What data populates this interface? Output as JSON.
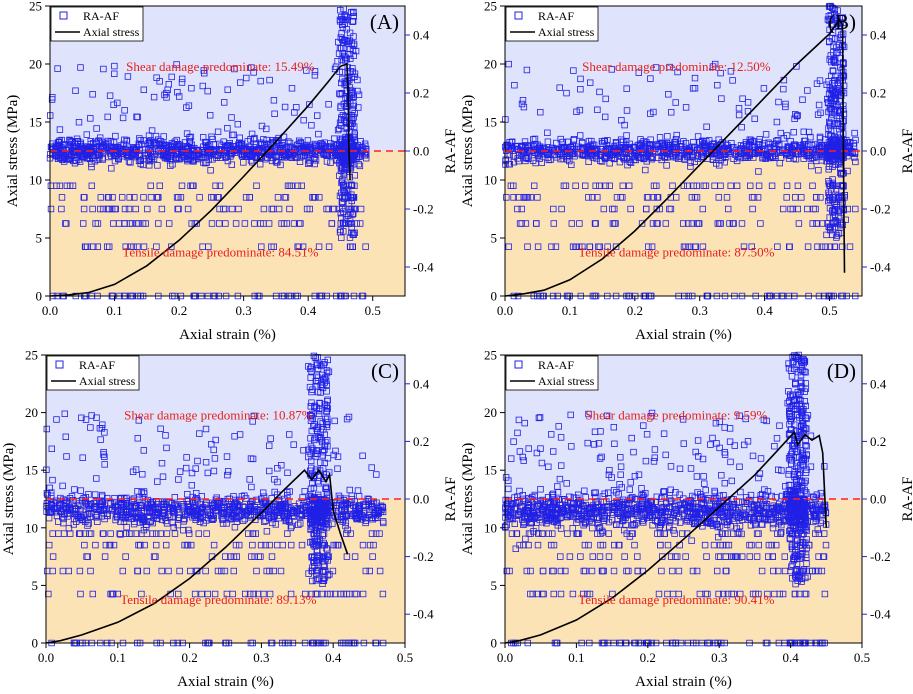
{
  "colors": {
    "shear_region": "#dfe3fb",
    "tensile_region": "#fbe3b5",
    "points": "#2020e6",
    "stress_line": "#000000",
    "threshold": "#ff2020",
    "annotation": "#e8201e",
    "right_axis": "#2020e6"
  },
  "chart_data": [
    {
      "type": "scatter",
      "panel_label": "(A)",
      "xlabel": "Axial strain (%)",
      "ylabel_left": "Axial stress (MPa)",
      "ylabel_right": "RA-AF",
      "xlim": [
        0,
        0.55
      ],
      "x_ticks": [
        "0.0",
        "0.1",
        "0.2",
        "0.3",
        "0.4",
        "0.5"
      ],
      "ylim_left": [
        0,
        25
      ],
      "ylim_right": [
        -0.5,
        0.5
      ],
      "left_ticks": [
        "0",
        "5",
        "10",
        "15",
        "20",
        "25"
      ],
      "right_ticks": [
        "-0.4",
        "-0.2",
        "0.0",
        "0.2",
        "0.4"
      ],
      "threshold": 0.0,
      "legend": [
        "RA-AF",
        "Axial stress"
      ],
      "shear_text": "Shear damage predominate: 15.49%",
      "tensile_text": "Tensile damage predominate: 84.51%",
      "failure_strain": 0.46,
      "stress_curve": {
        "x": [
          0,
          0.03,
          0.06,
          0.1,
          0.15,
          0.2,
          0.25,
          0.3,
          0.35,
          0.4,
          0.43,
          0.45,
          0.46,
          0.462,
          0.463,
          0.465
        ],
        "y": [
          0,
          0.1,
          0.3,
          1.0,
          2.6,
          4.8,
          7.4,
          10.3,
          13.3,
          16.4,
          18.4,
          19.8,
          20.0,
          17.5,
          13.0,
          10.0
        ]
      },
      "series": [
        {
          "name": "RA-AF",
          "n_points": 1500,
          "x_range": [
            0,
            0.49
          ],
          "band_center": 0.0,
          "band_sd": 0.02
        }
      ]
    },
    {
      "type": "scatter",
      "panel_label": "(B)",
      "xlabel": "Axial strain (%)",
      "ylabel_left": "Axial stress (MPa)",
      "ylabel_right": "RA-AF",
      "xlim": [
        0,
        0.55
      ],
      "x_ticks": [
        "0.0",
        "0.1",
        "0.2",
        "0.3",
        "0.4",
        "0.5"
      ],
      "ylim_left": [
        0,
        25
      ],
      "ylim_right": [
        -0.5,
        0.5
      ],
      "left_ticks": [
        "0",
        "5",
        "10",
        "15",
        "20",
        "25"
      ],
      "right_ticks": [
        "-0.4",
        "-0.2",
        "0.0",
        "0.2",
        "0.4"
      ],
      "threshold": 0.0,
      "legend": [
        "RA-AF",
        "Axial stress"
      ],
      "shear_text": "Shear damage predominate: 12.50%",
      "tensile_text": "Tensile damage predominate: 87.50%",
      "failure_strain": 0.51,
      "stress_curve": {
        "x": [
          0,
          0.03,
          0.06,
          0.1,
          0.15,
          0.2,
          0.25,
          0.3,
          0.35,
          0.4,
          0.45,
          0.5,
          0.515,
          0.52,
          0.522,
          0.523
        ],
        "y": [
          0,
          0.2,
          0.5,
          1.4,
          3.2,
          5.6,
          8.4,
          11.3,
          14.2,
          17.1,
          20.0,
          22.6,
          23.8,
          23.4,
          8.0,
          2.0
        ]
      },
      "series": [
        {
          "name": "RA-AF",
          "n_points": 1500,
          "x_range": [
            0,
            0.54
          ],
          "band_center": 0.0,
          "band_sd": 0.02
        }
      ]
    },
    {
      "type": "scatter",
      "panel_label": "(C)",
      "xlabel": "Axial strain (%)",
      "ylabel_left": "Axial stress (MPa)",
      "ylabel_right": "RA-AF",
      "xlim": [
        0,
        0.5
      ],
      "x_ticks": [
        "0.0",
        "0.1",
        "0.2",
        "0.3",
        "0.4",
        "0.5"
      ],
      "ylim_left": [
        0,
        25
      ],
      "ylim_right": [
        -0.5,
        0.5
      ],
      "left_ticks": [
        "0",
        "5",
        "10",
        "15",
        "20",
        "25"
      ],
      "right_ticks": [
        "-0.4",
        "-0.2",
        "0.0",
        "0.2",
        "0.4"
      ],
      "threshold": 0.0,
      "legend": [
        "RA-AF",
        "Axial stress"
      ],
      "shear_text": "Shear damage predominate: 10.87%",
      "tensile_text": "Tensile damage predominate: 89.13%",
      "failure_strain": 0.38,
      "stress_curve": {
        "x": [
          0,
          0.02,
          0.05,
          0.1,
          0.15,
          0.2,
          0.25,
          0.3,
          0.33,
          0.36,
          0.37,
          0.38,
          0.39,
          0.395,
          0.4,
          0.41,
          0.42
        ],
        "y": [
          0,
          0.2,
          0.7,
          1.8,
          3.4,
          5.6,
          8.3,
          11.3,
          13.2,
          15.0,
          14.2,
          15.0,
          14.0,
          14.6,
          11.5,
          9.5,
          7.7
        ]
      },
      "series": [
        {
          "name": "RA-AF",
          "n_points": 1500,
          "x_range": [
            0,
            0.47
          ],
          "band_center": -0.04,
          "band_sd": 0.025
        }
      ]
    },
    {
      "type": "scatter",
      "panel_label": "(D)",
      "xlabel": "Axial strain (%)",
      "ylabel_left": "Axial stress (MPa)",
      "ylabel_right": "RA-AF",
      "xlim": [
        0,
        0.5
      ],
      "x_ticks": [
        "0.0",
        "0.1",
        "0.2",
        "0.3",
        "0.4",
        "0.5"
      ],
      "ylim_left": [
        0,
        25
      ],
      "ylim_right": [
        -0.5,
        0.5
      ],
      "left_ticks": [
        "0",
        "5",
        "10",
        "15",
        "20",
        "25"
      ],
      "right_ticks": [
        "-0.4",
        "-0.2",
        "0.0",
        "0.2",
        "0.4"
      ],
      "threshold": 0.0,
      "legend": [
        "RA-AF",
        "Axial stress"
      ],
      "shear_text": "Shear damage predominate: 9.59%",
      "tensile_text": "Tensile damage predominate: 90.41%",
      "failure_strain": 0.41,
      "stress_curve": {
        "x": [
          0,
          0.02,
          0.05,
          0.1,
          0.15,
          0.2,
          0.25,
          0.3,
          0.35,
          0.38,
          0.405,
          0.41,
          0.42,
          0.43,
          0.44,
          0.445,
          0.45
        ],
        "y": [
          0,
          0.2,
          0.7,
          2.0,
          3.9,
          6.3,
          9.0,
          11.8,
          14.6,
          16.6,
          18.3,
          17.2,
          18.1,
          17.6,
          18.0,
          16.5,
          10.0
        ]
      },
      "series": [
        {
          "name": "RA-AF",
          "n_points": 1700,
          "x_range": [
            0,
            0.45
          ],
          "band_center": -0.04,
          "band_sd": 0.03
        }
      ]
    }
  ]
}
